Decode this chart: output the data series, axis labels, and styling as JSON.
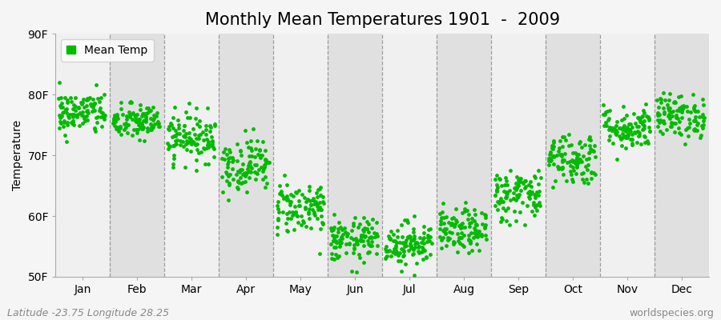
{
  "title": "Monthly Mean Temperatures 1901  -  2009",
  "ylabel": "Temperature",
  "ylim": [
    50,
    90
  ],
  "yticks": [
    50,
    60,
    70,
    80,
    90
  ],
  "ytick_labels": [
    "50F",
    "60F",
    "70F",
    "80F",
    "90F"
  ],
  "month_labels": [
    "Jan",
    "Feb",
    "Mar",
    "Apr",
    "May",
    "Jun",
    "Jul",
    "Aug",
    "Sep",
    "Oct",
    "Nov",
    "Dec"
  ],
  "watermark_left": "Latitude -23.75 Longitude 28.25",
  "watermark_right": "worldspecies.org",
  "dot_color": "#00bb00",
  "band_color_light": "#f0f0f0",
  "band_color_dark": "#e0e0e0",
  "figure_bg": "#f5f5f5",
  "legend_label": "Mean Temp",
  "num_years": 109,
  "monthly_means": [
    77.0,
    75.5,
    73.0,
    68.5,
    61.5,
    56.0,
    55.5,
    57.5,
    63.5,
    69.5,
    74.5,
    76.5
  ],
  "monthly_stds": [
    1.8,
    1.5,
    2.0,
    2.2,
    2.2,
    1.8,
    1.8,
    1.8,
    2.2,
    2.2,
    1.8,
    1.8
  ],
  "title_fontsize": 15,
  "axis_fontsize": 10,
  "tick_fontsize": 10,
  "watermark_fontsize": 9,
  "dot_size": 12
}
